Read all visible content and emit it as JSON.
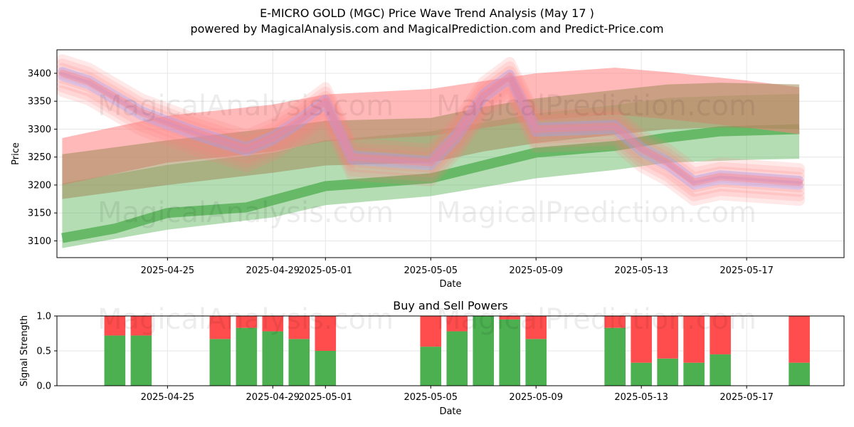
{
  "page": {
    "title": "E-MICRO GOLD (MGC) Price Wave Trend Analysis (May 17 )",
    "subtitle": "powered by MagicalAnalysis.com and MagicalPrediction.com and Predict-Price.com",
    "watermarks": [
      "MagicalAnalysis.com",
      "MagicalPrediction.com"
    ]
  },
  "colors": {
    "buy": "#4caf50",
    "sell": "#ff4d4d",
    "red_band": "#ff8080",
    "green_band": "#59b359",
    "blue_band": "#a0a0ff",
    "olive_band": "#a08a5a"
  },
  "chart_data": [
    {
      "type": "area",
      "title": "",
      "xlabel": "Date",
      "ylabel": "Price",
      "ylim": [
        3070,
        3442
      ],
      "y_ticks": [
        3100,
        3150,
        3200,
        3250,
        3300,
        3350,
        3400
      ],
      "x_ticks": [
        "2025-04-25",
        "2025-04-29",
        "2025-05-01",
        "2025-05-05",
        "2025-05-09",
        "2025-05-13",
        "2025-05-17"
      ],
      "x_range": [
        "2025-04-21",
        "2025-05-20"
      ],
      "grid": true,
      "series": [
        {
          "kind": "red_wide_band",
          "x": [
            "2025-04-21",
            "2025-04-25",
            "2025-04-29",
            "2025-05-01",
            "2025-05-05",
            "2025-05-09",
            "2025-05-12",
            "2025-05-14",
            "2025-05-17",
            "2025-05-19"
          ],
          "y": [
            3242,
            3282,
            3302,
            3320,
            3330,
            3358,
            3368,
            3360,
            3345,
            3333
          ],
          "half_width": 42
        },
        {
          "kind": "green_wide_band",
          "x": [
            "2025-04-21",
            "2025-04-25",
            "2025-04-29",
            "2025-05-01",
            "2025-05-05",
            "2025-05-09",
            "2025-05-12",
            "2025-05-14",
            "2025-05-17",
            "2025-05-19"
          ],
          "y": [
            3145,
            3178,
            3200,
            3222,
            3238,
            3270,
            3285,
            3298,
            3303,
            3305
          ],
          "half_width": 58
        },
        {
          "kind": "green_mid_line",
          "x": [
            "2025-04-21",
            "2025-04-23",
            "2025-04-25",
            "2025-04-28",
            "2025-05-01",
            "2025-05-05",
            "2025-05-07",
            "2025-05-09",
            "2025-05-12",
            "2025-05-14",
            "2025-05-16",
            "2025-05-19"
          ],
          "y": [
            3105,
            3122,
            3150,
            3160,
            3198,
            3212,
            3235,
            3258,
            3270,
            3285,
            3296,
            3300
          ]
        },
        {
          "kind": "olive_band",
          "x": [
            "2025-04-21",
            "2025-04-25",
            "2025-04-29",
            "2025-05-01",
            "2025-05-05",
            "2025-05-07",
            "2025-05-09",
            "2025-05-12",
            "2025-05-14",
            "2025-05-16",
            "2025-05-19"
          ],
          "y": [
            3215,
            3240,
            3262,
            3275,
            3280,
            3300,
            3315,
            3330,
            3340,
            3343,
            3340
          ],
          "half_width": 40
        },
        {
          "kind": "price_wave",
          "x": [
            "2025-04-21",
            "2025-04-22",
            "2025-04-24",
            "2025-04-26",
            "2025-04-28",
            "2025-04-29",
            "2025-04-30",
            "2025-05-01",
            "2025-05-02",
            "2025-05-05",
            "2025-05-06",
            "2025-05-07",
            "2025-05-08",
            "2025-05-09",
            "2025-05-12",
            "2025-05-13",
            "2025-05-14",
            "2025-05-15",
            "2025-05-16",
            "2025-05-19"
          ],
          "y": [
            3400,
            3385,
            3330,
            3295,
            3265,
            3285,
            3315,
            3350,
            3250,
            3240,
            3290,
            3360,
            3395,
            3300,
            3305,
            3265,
            3240,
            3205,
            3215,
            3205
          ]
        }
      ]
    },
    {
      "type": "bar",
      "title": "Buy and Sell Powers",
      "xlabel": "Date",
      "ylabel": "Signal Strength",
      "ylim": [
        0,
        1
      ],
      "y_ticks": [
        "0.0",
        "0.5",
        "1.0"
      ],
      "x_ticks": [
        "2025-04-25",
        "2025-04-29",
        "2025-05-01",
        "2025-05-05",
        "2025-05-09",
        "2025-05-13",
        "2025-05-17"
      ],
      "categories": [
        "2025-04-23",
        "2025-04-24",
        "2025-04-27",
        "2025-04-28",
        "2025-04-29",
        "2025-04-30",
        "2025-05-01",
        "2025-05-05",
        "2025-05-06",
        "2025-05-07",
        "2025-05-08",
        "2025-05-09",
        "2025-05-12",
        "2025-05-13",
        "2025-05-14",
        "2025-05-15",
        "2025-05-16",
        "2025-05-19"
      ],
      "series": [
        {
          "name": "Buy",
          "values": [
            0.72,
            0.72,
            0.67,
            0.83,
            0.78,
            0.67,
            0.5,
            0.56,
            0.78,
            1.0,
            0.95,
            0.67,
            0.83,
            0.33,
            0.39,
            0.33,
            0.45,
            0.33
          ]
        },
        {
          "name": "Sell",
          "values": [
            0.28,
            0.28,
            0.33,
            0.17,
            0.22,
            0.33,
            0.5,
            0.44,
            0.22,
            0.0,
            0.05,
            0.33,
            0.17,
            0.67,
            0.61,
            0.67,
            0.55,
            0.67
          ]
        }
      ],
      "grid": true
    }
  ]
}
